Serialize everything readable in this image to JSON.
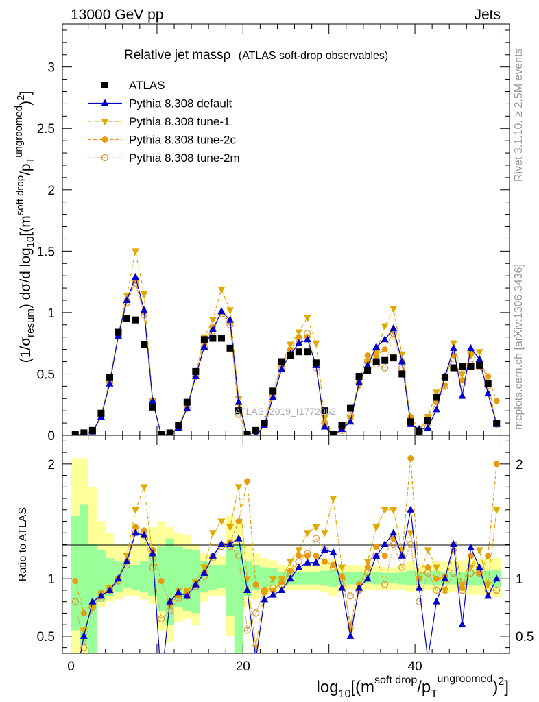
{
  "header": {
    "left": "13000 GeV pp",
    "right": "Jets"
  },
  "side_labels": {
    "top": "Rivet 3.1.10, ≥ 2.5M events",
    "bottom": "mcplots.cern.ch [arXiv:1306.3436]"
  },
  "watermark": "ATLAS_2019_I1772062",
  "chart_data": {
    "type": "scatter",
    "title": "Relative jet massρ",
    "subtitle": "(ATLAS soft-drop observables)",
    "xlabel": "log10[(m^soft drop/pT^ungroomed)2]",
    "ylabel": "(1/σresum) dσ/d log10[(m^soft drop/pT^ungroomed)2]",
    "ratio_ylabel": "Ratio to ATLAS",
    "xlim": [
      -1,
      51
    ],
    "ylim": [
      0,
      3.35
    ],
    "ratio_ylim": [
      0.35,
      2.25
    ],
    "xticks": [
      0,
      20,
      40
    ],
    "yticks": [
      0.5,
      1,
      1.5,
      2,
      2.5,
      3
    ],
    "ratio_yticks": [
      0.5,
      1,
      2
    ],
    "legend_position": "top-left",
    "x": [
      0.5,
      1.5,
      2.5,
      3.5,
      4.5,
      5.5,
      6.5,
      7.5,
      8.5,
      9.5,
      10.5,
      11.5,
      12.5,
      13.5,
      14.5,
      15.5,
      16.5,
      17.5,
      18.5,
      19.5,
      20.5,
      21.5,
      22.5,
      23.5,
      24.5,
      25.5,
      26.5,
      27.5,
      28.5,
      29.5,
      30.5,
      31.5,
      32.5,
      33.5,
      34.5,
      35.5,
      36.5,
      37.5,
      38.5,
      39.5,
      40.5,
      41.5,
      42.5,
      43.5,
      44.5,
      45.5,
      46.5,
      47.5,
      48.5,
      49.5
    ],
    "series": [
      {
        "name": "ATLAS",
        "style": "data",
        "values": [
          0.01,
          0.02,
          0.04,
          0.18,
          0.47,
          0.84,
          0.95,
          0.94,
          0.74,
          0.23,
          0.01,
          0.02,
          0.08,
          0.27,
          0.52,
          0.78,
          0.79,
          0.79,
          0.71,
          0.2,
          0.01,
          0.04,
          0.1,
          0.36,
          0.6,
          0.65,
          0.68,
          0.68,
          0.59,
          0.2,
          0.01,
          0.08,
          0.22,
          0.48,
          0.53,
          0.6,
          0.61,
          0.63,
          0.5,
          0.11,
          0.03,
          0.12,
          0.31,
          0.47,
          0.55,
          0.56,
          0.56,
          0.57,
          0.42,
          0.1
        ],
        "ratio_band_inner": [
          0.55,
          0.42,
          0.25,
          0.8,
          0.85,
          0.88,
          0.92,
          0.9,
          0.88,
          0.85,
          0.72,
          0.6,
          0.75,
          0.72,
          0.7,
          0.88,
          0.9,
          0.92,
          0.68,
          0.3,
          0.85,
          0.9,
          0.93,
          0.94,
          0.95,
          0.95,
          0.95,
          0.95,
          0.95,
          0.94,
          0.93,
          0.95,
          0.95,
          0.95,
          0.96,
          0.95,
          0.96,
          0.96,
          0.95,
          0.94,
          0.95,
          0.95,
          0.94,
          0.95,
          0.95,
          0.95,
          0.94,
          0.94,
          0.94,
          0.93
        ],
        "ratio_band_inner_hi": [
          1.55,
          1.65,
          1.3,
          1.25,
          1.18,
          1.15,
          1.12,
          1.12,
          1.15,
          1.2,
          1.28,
          1.35,
          1.28,
          1.26,
          1.25,
          1.15,
          1.12,
          1.12,
          1.3,
          1.3,
          1.15,
          1.12,
          1.1,
          1.09,
          1.06,
          1.06,
          1.06,
          1.06,
          1.06,
          1.07,
          1.08,
          1.06,
          1.06,
          1.06,
          1.05,
          1.06,
          1.05,
          1.05,
          1.06,
          1.07,
          1.06,
          1.06,
          1.07,
          1.06,
          1.06,
          1.06,
          1.07,
          1.07,
          1.07,
          1.08
        ],
        "ratio_band_outer": [
          0.35,
          0.35,
          0.35,
          0.75,
          0.8,
          0.82,
          0.85,
          0.85,
          0.82,
          0.78,
          0.55,
          0.45,
          0.62,
          0.65,
          0.6,
          0.8,
          0.85,
          0.85,
          0.5,
          0.35,
          0.75,
          0.82,
          0.86,
          0.88,
          0.9,
          0.9,
          0.9,
          0.9,
          0.9,
          0.88,
          0.85,
          0.88,
          0.9,
          0.9,
          0.9,
          0.9,
          0.9,
          0.9,
          0.9,
          0.88,
          0.9,
          0.9,
          0.88,
          0.88,
          0.88,
          0.88,
          0.86,
          0.86,
          0.86,
          0.84
        ],
        "ratio_band_outer_hi": [
          2.05,
          2.05,
          1.8,
          1.5,
          1.4,
          1.3,
          1.3,
          1.3,
          1.4,
          1.45,
          1.5,
          1.45,
          1.4,
          1.38,
          1.3,
          1.22,
          1.2,
          1.2,
          1.55,
          1.5,
          1.3,
          1.22,
          1.18,
          1.16,
          1.12,
          1.12,
          1.12,
          1.12,
          1.12,
          1.15,
          1.17,
          1.12,
          1.12,
          1.12,
          1.1,
          1.12,
          1.1,
          1.1,
          1.12,
          1.15,
          1.12,
          1.12,
          1.15,
          1.15,
          1.15,
          1.16,
          1.17,
          1.17,
          1.17,
          1.18
        ]
      },
      {
        "name": "Pythia 8.308 default",
        "style": "default",
        "values": [
          0.0,
          0.01,
          0.03,
          0.15,
          0.42,
          0.81,
          1.1,
          1.29,
          1.02,
          0.28,
          0.0,
          0.01,
          0.06,
          0.22,
          0.48,
          0.72,
          0.86,
          1.01,
          0.94,
          0.27,
          0.0,
          0.0,
          0.08,
          0.31,
          0.54,
          0.66,
          0.75,
          0.78,
          0.57,
          0.07,
          0.0,
          0.05,
          0.11,
          0.43,
          0.57,
          0.72,
          0.78,
          0.87,
          0.6,
          0.09,
          0.05,
          0.06,
          0.21,
          0.48,
          0.71,
          0.32,
          0.71,
          0.62,
          0.34,
          0.09
        ],
        "ratio": [
          0.1,
          0.5,
          0.8,
          0.85,
          0.9,
          1.0,
          1.15,
          1.4,
          1.38,
          1.22,
          0.1,
          0.8,
          0.88,
          0.85,
          0.95,
          1.05,
          1.2,
          1.3,
          1.3,
          1.35,
          0.9,
          0.3,
          0.82,
          0.86,
          0.9,
          1.0,
          1.1,
          1.14,
          1.14,
          1.25,
          1.23,
          0.92,
          0.5,
          0.92,
          1.0,
          1.2,
          1.3,
          1.4,
          1.2,
          1.6,
          0.92,
          0.3,
          0.8,
          1.0,
          1.3,
          0.6,
          1.27,
          1.1,
          0.85,
          1.0
        ]
      },
      {
        "name": "Pythia 8.308 tune-1",
        "style": "tune1",
        "values": [
          0.0,
          0.01,
          0.03,
          0.16,
          0.45,
          0.82,
          1.14,
          1.5,
          1.15,
          0.28,
          0.0,
          0.01,
          0.07,
          0.24,
          0.5,
          0.8,
          0.94,
          1.19,
          1.02,
          0.3,
          0.0,
          0.01,
          0.1,
          0.37,
          0.58,
          0.74,
          0.84,
          0.96,
          0.75,
          0.14,
          0.0,
          0.05,
          0.14,
          0.4,
          0.6,
          0.67,
          0.89,
          1.03,
          0.66,
          0.12,
          0.03,
          0.15,
          0.35,
          0.4,
          0.75,
          0.5,
          0.65,
          0.68,
          0.41,
          0.1
        ],
        "ratio": [
          0.1,
          0.55,
          0.75,
          0.85,
          0.92,
          1.0,
          1.2,
          1.6,
          1.8,
          1.2,
          0.1,
          0.8,
          0.9,
          0.9,
          0.97,
          1.1,
          1.4,
          1.5,
          1.45,
          1.8,
          1.0,
          0.4,
          0.9,
          1.0,
          1.0,
          1.15,
          1.25,
          1.4,
          1.45,
          1.4,
          1.7,
          1.1,
          0.55,
          0.9,
          1.15,
          1.45,
          1.6,
          1.6,
          1.25,
          1.4,
          1.0,
          1.25,
          1.1,
          0.9,
          1.3,
          0.95,
          1.1,
          1.25,
          0.95,
          1.6
        ]
      },
      {
        "name": "Pythia 8.308 tune-2c",
        "style": "tune2c",
        "values": [
          0.0,
          0.01,
          0.03,
          0.16,
          0.44,
          0.82,
          1.1,
          1.26,
          1.0,
          0.28,
          0.0,
          0.01,
          0.07,
          0.23,
          0.49,
          0.75,
          0.88,
          1.0,
          0.92,
          0.2,
          0.0,
          0.04,
          0.09,
          0.34,
          0.57,
          0.7,
          0.8,
          0.8,
          0.57,
          0.1,
          0.0,
          0.05,
          0.14,
          0.45,
          0.65,
          0.65,
          0.7,
          0.85,
          0.6,
          0.15,
          0.05,
          0.15,
          0.27,
          0.48,
          0.65,
          0.45,
          0.67,
          0.6,
          0.48,
          0.28
        ],
        "ratio": [
          0.98,
          0.7,
          0.78,
          0.88,
          0.92,
          1.0,
          1.15,
          1.45,
          1.42,
          1.25,
          0.98,
          0.78,
          0.85,
          0.88,
          0.95,
          1.05,
          1.2,
          1.3,
          1.32,
          1.5,
          1.85,
          0.95,
          0.88,
          0.9,
          0.97,
          1.07,
          1.2,
          1.2,
          1.2,
          1.15,
          1.12,
          1.02,
          0.6,
          0.95,
          1.1,
          1.28,
          1.2,
          1.35,
          1.2,
          2.05,
          1.0,
          1.1,
          1.0,
          1.02,
          1.25,
          0.92,
          1.2,
          1.05,
          1.2,
          2.0
        ]
      },
      {
        "name": "Pythia 8.308 tune-2m",
        "style": "tune2m",
        "values": [
          0.0,
          0.01,
          0.03,
          0.16,
          0.43,
          0.81,
          1.08,
          1.24,
          0.98,
          0.26,
          0.0,
          0.01,
          0.07,
          0.22,
          0.48,
          0.72,
          0.85,
          0.99,
          0.9,
          0.17,
          0.0,
          0.03,
          0.1,
          0.32,
          0.55,
          0.68,
          0.78,
          0.83,
          0.55,
          0.1,
          0.0,
          0.04,
          0.16,
          0.42,
          0.6,
          0.58,
          0.55,
          0.83,
          0.55,
          0.1,
          0.02,
          0.07,
          0.28,
          0.4,
          0.58,
          0.42,
          0.58,
          0.56,
          0.4,
          0.09
        ],
        "ratio": [
          0.8,
          0.4,
          0.75,
          0.83,
          0.9,
          0.98,
          1.12,
          1.4,
          1.38,
          1.1,
          0.65,
          0.72,
          0.83,
          0.85,
          0.93,
          1.02,
          1.18,
          1.28,
          1.28,
          1.2,
          0.55,
          0.7,
          0.9,
          0.92,
          0.95,
          1.05,
          1.15,
          1.22,
          1.35,
          1.25,
          1.1,
          1.0,
          0.85,
          0.9,
          1.05,
          1.2,
          0.95,
          1.3,
          1.1,
          1.3,
          0.8,
          1.05,
          0.9,
          0.9,
          1.05,
          0.9,
          1.05,
          1.05,
          0.9,
          0.9
        ]
      }
    ]
  }
}
